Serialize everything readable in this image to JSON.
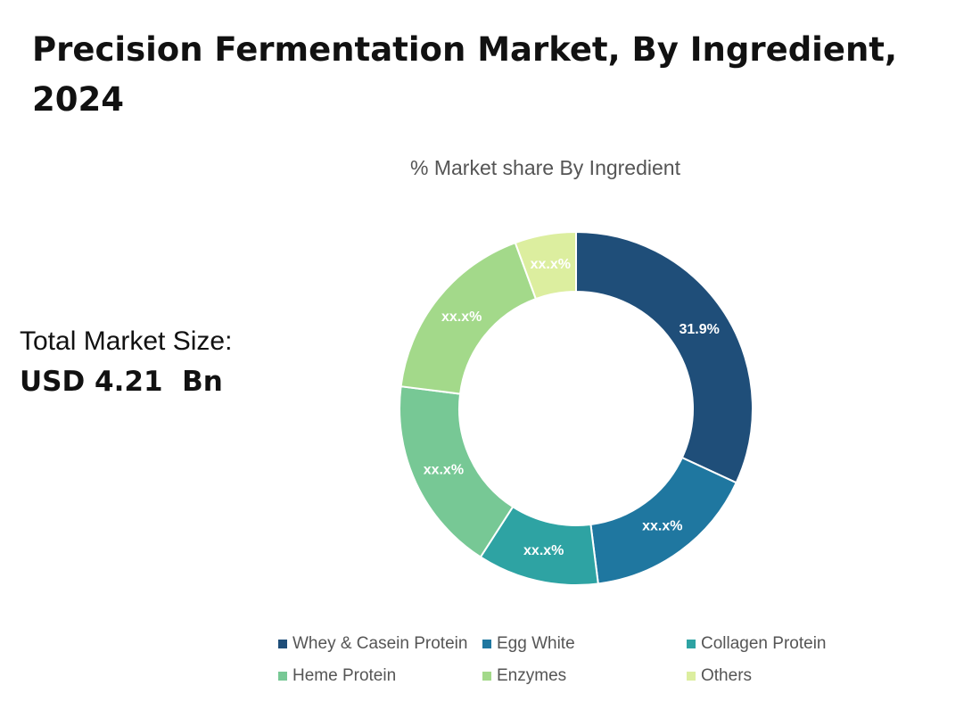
{
  "header": {
    "title": "Precision Fermentation Market, By Ingredient, 2024"
  },
  "summary": {
    "label": "Total Market Size:",
    "value": "USD 4.21  Bn"
  },
  "chart_data": {
    "type": "pie",
    "subtitle": "% Market share By Ingredient",
    "donut": true,
    "categories": [
      "Whey & Casein Protein",
      "Egg White",
      "Collagen Protein",
      "Heme Protein",
      "Enzymes",
      "Others"
    ],
    "values": [
      31.9,
      16.1,
      11.1,
      17.9,
      17.4,
      5.6
    ],
    "labels": [
      "31.9%",
      "xx.x%",
      "xx.x%",
      "xx.x%",
      "xx.x%",
      "xx.x%"
    ],
    "colors": [
      "#1f4e79",
      "#1f77a0",
      "#2ea3a3",
      "#77c895",
      "#a3d98a",
      "#dcee9f"
    ],
    "legend_position": "bottom"
  }
}
